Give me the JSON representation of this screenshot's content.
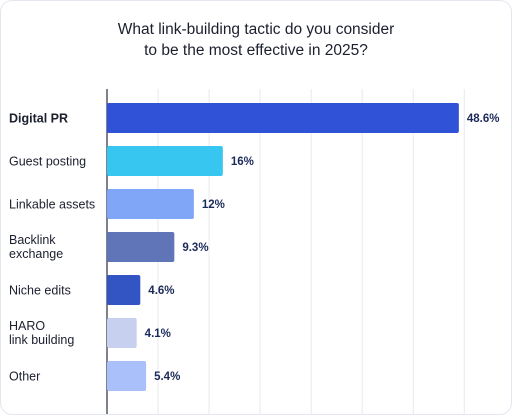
{
  "chart_data": {
    "type": "bar",
    "orientation": "horizontal",
    "title": "What link-building tactic do you consider\nto be the most effective in 2025?",
    "categories": [
      "Digital PR",
      "Guest posting",
      "Linkable assets",
      "Backlink\nexchange",
      "Niche edits",
      "HARO\nlink building",
      "Other"
    ],
    "values": [
      48.6,
      16,
      12,
      9.3,
      4.6,
      4.1,
      5.4
    ],
    "value_labels": [
      "48.6%",
      "16%",
      "12%",
      "9.3%",
      "4.6%",
      "4.1%",
      "5.4%"
    ],
    "colors": [
      "#2f52d6",
      "#36c6f0",
      "#7fa6f7",
      "#6074b8",
      "#3355c4",
      "#c8d0ef",
      "#a9c0fb"
    ],
    "bold_categories": [
      "Digital PR"
    ],
    "xlim": [
      0,
      50
    ],
    "grid": true,
    "xlabel": "",
    "ylabel": ""
  }
}
